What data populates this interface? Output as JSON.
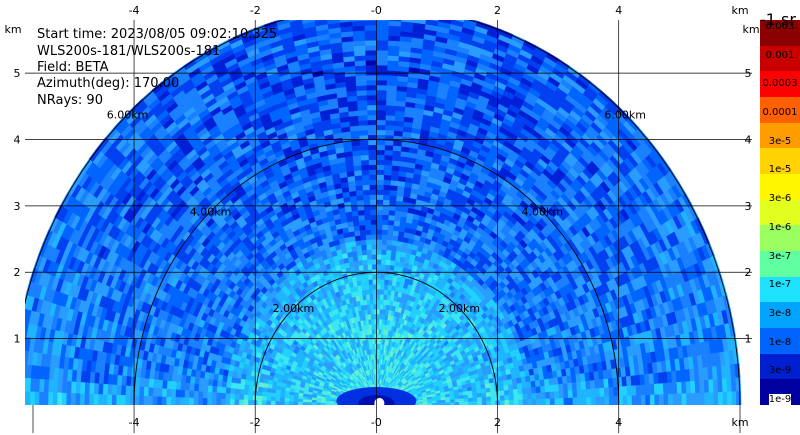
{
  "info": {
    "start_time": "Start time: 2023/08/05 09:02:10.325",
    "instrument": "WLS200s-181/WLS200s-181",
    "field": "Field: BETA",
    "azimuth": "Azimuth(deg): 170.00",
    "nrays": "NRays: 90"
  },
  "colorbar": {
    "title": "-1 sr",
    "labels": [
      "0.003",
      "0.001",
      "0.0003",
      "0.0001",
      "3e-5",
      "1e-5",
      "3e-6",
      "1e-6",
      "3e-7",
      "1e-7",
      "3e-8",
      "1e-8",
      "3e-9",
      "1e-9"
    ],
    "colors": [
      "#8b0000",
      "#c80000",
      "#ff0000",
      "#ff6000",
      "#ff9d00",
      "#ffd200",
      "#fff600",
      "#dfff1e",
      "#9cff60",
      "#60ffa0",
      "#1ee1ff",
      "#00a4ff",
      "#0064ff",
      "#0020d0",
      "#0000a0"
    ]
  },
  "chart_data": {
    "type": "heatmap",
    "title": "",
    "xlabel": "",
    "ylabel": "",
    "x_unit": "km",
    "y_unit": "km",
    "xlim": [
      -5.8,
      6.2
    ],
    "ylim": [
      0,
      5.8
    ],
    "xticks": [
      -4,
      -2,
      0,
      2,
      4
    ],
    "x_tick_labels": [
      "-4",
      "-2",
      "-0",
      "2",
      "4"
    ],
    "yticks": [
      1,
      2,
      3,
      4,
      5
    ],
    "y_tick_labels": [
      "1",
      "2",
      "3",
      "4",
      "5"
    ],
    "range_rings_km": [
      2,
      4,
      6
    ],
    "range_ring_labels": [
      "2.00km",
      "4.00km",
      "6.00km"
    ],
    "max_range_km": 6,
    "scan": "RHI",
    "grid": true
  }
}
